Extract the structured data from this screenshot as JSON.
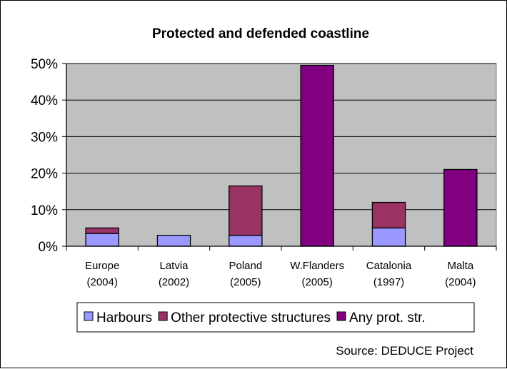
{
  "chart_data": {
    "type": "bar",
    "stacked": true,
    "title": "Protected and defended coastline",
    "xlabel": "",
    "ylabel": "",
    "ylim": [
      0,
      50
    ],
    "yticks": [
      "0%",
      "10%",
      "20%",
      "30%",
      "40%",
      "50%"
    ],
    "grid": true,
    "legend_position": "bottom",
    "categories": [
      [
        "Europe",
        "(2004)"
      ],
      [
        "Latvia",
        "(2002)"
      ],
      [
        "Poland",
        "(2005)"
      ],
      [
        "W.Flanders",
        "(2005)"
      ],
      [
        "Catalonia",
        "(1997)"
      ],
      [
        "Malta",
        "(2004)"
      ]
    ],
    "series": [
      {
        "name": "Harbours",
        "color": "#9999ff",
        "values": [
          3.5,
          3,
          3,
          0,
          5,
          0
        ]
      },
      {
        "name": "Other protective structures",
        "color": "#993366",
        "values": [
          1.5,
          0,
          13.5,
          0,
          7,
          0
        ]
      },
      {
        "name": "Any prot. str.",
        "color": "#800080",
        "values": [
          0,
          0,
          0,
          49.5,
          0,
          21
        ]
      }
    ],
    "source": "Source: DEDUCE Project",
    "plot_background": "#c0c0c0"
  }
}
